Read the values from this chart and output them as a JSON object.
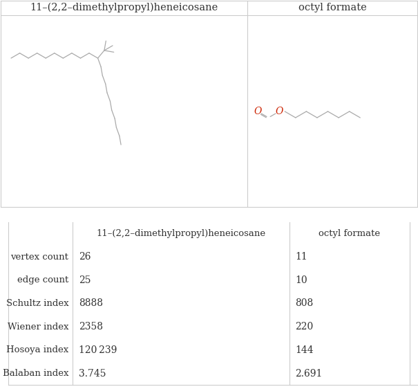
{
  "title_col1": "11–(2,2–dimethylpropyl)heneicosane",
  "title_col2": "octyl formate",
  "table_headers": [
    "",
    "11–(2,2–dimethylpropyl)heneicosane",
    "octyl formate"
  ],
  "table_rows": [
    [
      "vertex count",
      "26",
      "11"
    ],
    [
      "edge count",
      "25",
      "10"
    ],
    [
      "Schultz index",
      "8888",
      "808"
    ],
    [
      "Wiener index",
      "2358",
      "220"
    ],
    [
      "Hosoya index",
      "120 239",
      "144"
    ],
    [
      "Balaban index",
      "3.745",
      "2.691"
    ]
  ],
  "mol1_color": "#aaaaaa",
  "mol2_color": "#aaaaaa",
  "oxygen_color": "#cc2200",
  "border_color": "#cccccc",
  "bg_color": "#ffffff",
  "text_color": "#333333",
  "font_size_title": 10.5,
  "font_size_table_header": 9.5,
  "font_size_table_data": 10,
  "font_size_table_label": 9.5
}
